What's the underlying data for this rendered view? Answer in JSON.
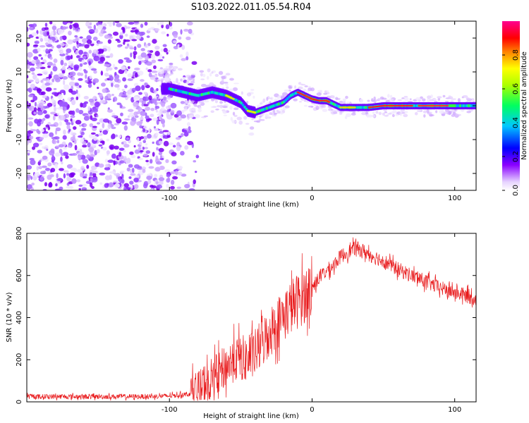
{
  "title": "S103.2022.011.05.54.R04",
  "chart_data": [
    {
      "type": "heatmap",
      "name": "spectrogram",
      "xlabel": "Height of straight line (km)",
      "ylabel": "Frequency (Hz)",
      "xlim": [
        -200,
        115
      ],
      "ylim": [
        -25,
        25
      ],
      "xticks": [
        -100,
        0,
        100
      ],
      "yticks": [
        -20,
        -10,
        0,
        10,
        20
      ],
      "colorbar": {
        "label": "Normalized spectral amplitude",
        "range": [
          0,
          1
        ],
        "ticks": [
          0.0,
          0.2,
          0.4,
          0.6,
          0.8
        ]
      },
      "ridge": {
        "x": [
          -100,
          -90,
          -80,
          -70,
          -60,
          -50,
          -45,
          -40,
          -30,
          -20,
          -15,
          -10,
          -5,
          0,
          5,
          10,
          15,
          20,
          30,
          40,
          50,
          60,
          70,
          80,
          90,
          100,
          110,
          115
        ],
        "freq": [
          5,
          4,
          3,
          4,
          3,
          1,
          -1.5,
          -2,
          -0.5,
          1,
          3,
          4,
          3,
          2,
          1.5,
          1.5,
          0.5,
          -0.5,
          -0.5,
          -0.5,
          0,
          0,
          0,
          0,
          0,
          0,
          0,
          0
        ]
      }
    },
    {
      "type": "line",
      "name": "snr",
      "xlabel": "Height of straight line (km)",
      "ylabel": "SNR (10 * v/v)",
      "xlim": [
        -200,
        115
      ],
      "ylim": [
        0,
        800
      ],
      "xticks": [
        -100,
        0,
        100
      ],
      "yticks": [
        0,
        200,
        400,
        600,
        800
      ],
      "color": "#e8191b",
      "series": [
        {
          "name": "SNR",
          "x": [
            -200,
            -180,
            -160,
            -140,
            -120,
            -100,
            -90,
            -85,
            -80,
            -75,
            -70,
            -65,
            -60,
            -55,
            -50,
            -45,
            -40,
            -35,
            -30,
            -25,
            -20,
            -15,
            -10,
            -5,
            0,
            5,
            10,
            15,
            20,
            25,
            30,
            35,
            40,
            50,
            60,
            70,
            80,
            90,
            100,
            110,
            115
          ],
          "y": [
            25,
            25,
            25,
            25,
            25,
            28,
            35,
            40,
            50,
            80,
            110,
            140,
            170,
            200,
            210,
            200,
            230,
            280,
            330,
            370,
            410,
            450,
            480,
            510,
            540,
            590,
            620,
            650,
            690,
            710,
            730,
            720,
            700,
            670,
            630,
            600,
            570,
            540,
            520,
            500,
            490
          ]
        }
      ]
    }
  ]
}
